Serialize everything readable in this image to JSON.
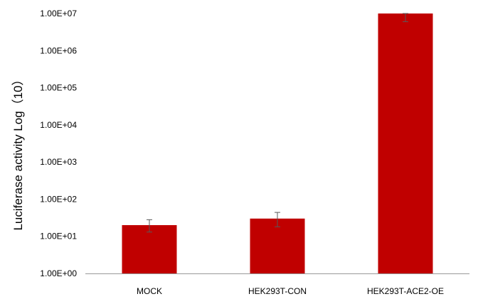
{
  "chart_data": {
    "type": "bar",
    "title": "",
    "xlabel": "",
    "ylabel": "Luciferase activity Log（10）",
    "yscale": "log10",
    "ylim": [
      1,
      10000000
    ],
    "yticks": [
      "1.00E+00",
      "1.00E+01",
      "1.00E+02",
      "1.00E+03",
      "1.00E+04",
      "1.00E+05",
      "1.00E+06",
      "1.00E+07"
    ],
    "ytick_values": [
      1,
      10,
      100,
      1000,
      10000,
      100000,
      1000000,
      10000000
    ],
    "categories": [
      "MOCK",
      "HEK293T-CON",
      "HEK293T-ACE2-OE"
    ],
    "values": [
      20,
      30,
      10000000
    ],
    "error_low": [
      13,
      18,
      6000000
    ],
    "error_high": [
      28,
      44,
      10000000
    ],
    "bar_color": "#c00000",
    "grid": false,
    "legend": "none"
  }
}
